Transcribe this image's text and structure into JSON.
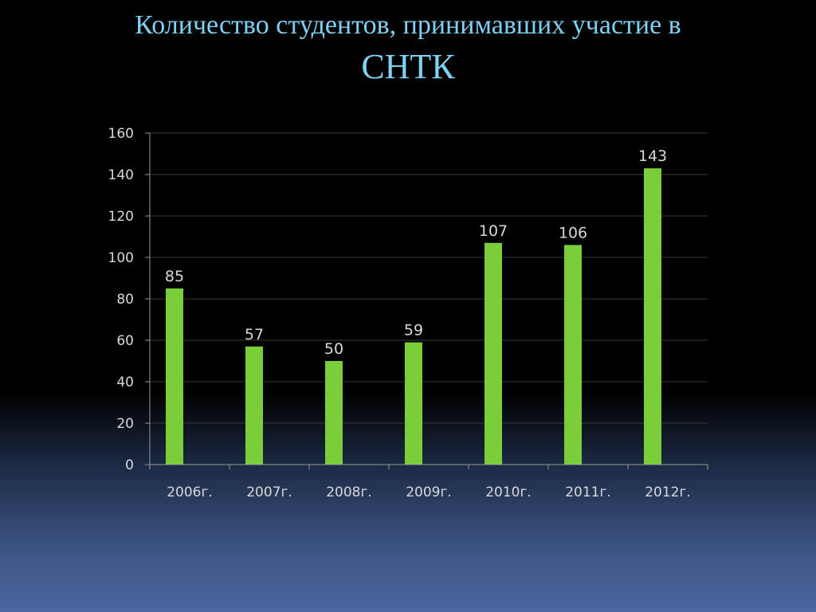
{
  "slide": {
    "title_line1": "Количество студентов,  принимавших участие в",
    "title_line2": "СНТК"
  },
  "colors": {
    "bar": "#7ccd3a",
    "grid": "#3a3a3a",
    "axis": "#9a9a9a",
    "title": "#7fd2f4"
  },
  "chart_data": {
    "type": "bar",
    "categories": [
      "2006г.",
      "2007г.",
      "2008г.",
      "2009г.",
      "2010г.",
      "2011г.",
      "2012г."
    ],
    "values": [
      85,
      57,
      50,
      59,
      107,
      106,
      143
    ],
    "data_labels": [
      "85",
      "57",
      "50",
      "59",
      "107",
      "106",
      "143"
    ],
    "yticks": [
      0,
      20,
      40,
      60,
      80,
      100,
      120,
      140,
      160
    ],
    "ylim": [
      0,
      160
    ],
    "title": "",
    "xlabel": "",
    "ylabel": "",
    "grid": true,
    "legend": "none"
  }
}
